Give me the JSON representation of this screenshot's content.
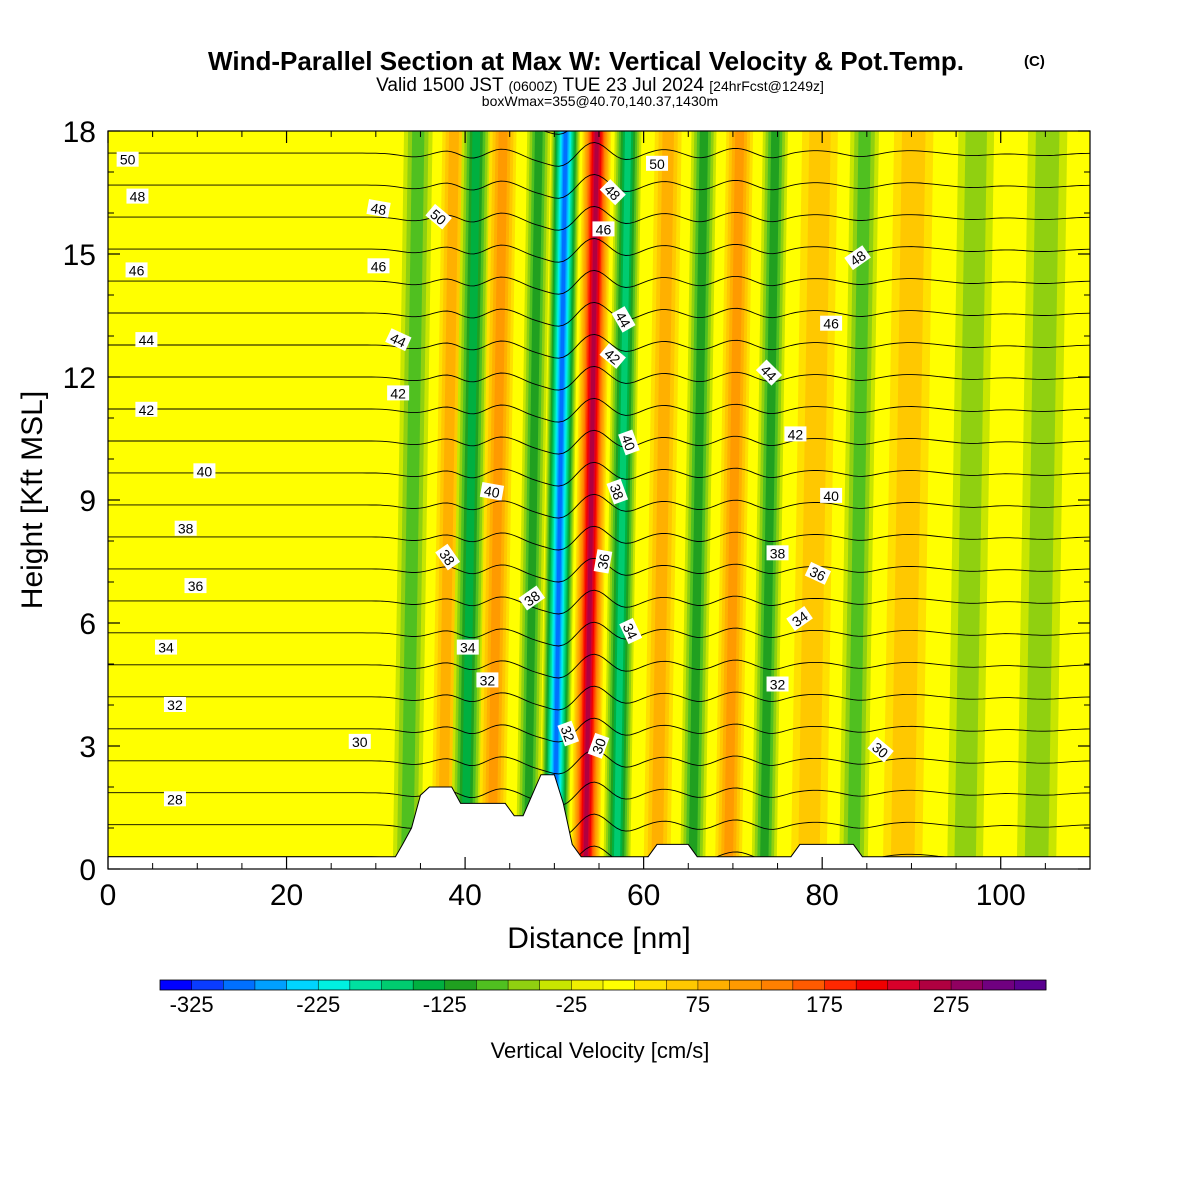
{
  "chart_data": {
    "type": "heatmap",
    "title": "Wind-Parallel Section at Max W: Vertical Velocity & Pot.Temp.",
    "title_mark": "(C)",
    "subtitle_parts": [
      "Valid 1500 JST ",
      "(0600Z)",
      " TUE 23 Jul 2024 ",
      "[24hrFcst@1249z]"
    ],
    "subtitle2": "boxWmax=355@40.70,140.37,1430m",
    "xlabel": "Distance [nm]",
    "ylabel": "Height [Kft MSL]",
    "xlim": [
      0,
      110
    ],
    "ylim": [
      0,
      18
    ],
    "xticks": [
      0,
      20,
      40,
      60,
      80,
      100
    ],
    "yticks": [
      0,
      3,
      6,
      9,
      12,
      15,
      18
    ],
    "colorbar": {
      "label": "Vertical Velocity [cm/s]",
      "min": -350,
      "max": 350,
      "step": 25,
      "tick_values": [
        -325,
        -225,
        -125,
        -25,
        75,
        175,
        275
      ],
      "colors": [
        "#0000ff",
        "#0a3cff",
        "#0070ff",
        "#00a0ff",
        "#00d4ff",
        "#00f0e0",
        "#00e0a0",
        "#00cc70",
        "#00b040",
        "#20a020",
        "#50c020",
        "#90d010",
        "#c8e600",
        "#f0f000",
        "#ffff00",
        "#ffe000",
        "#ffc800",
        "#ffb000",
        "#ff9a00",
        "#ff8000",
        "#ff5a00",
        "#ff2800",
        "#f00000",
        "#d8002a",
        "#b00040",
        "#900060",
        "#700080",
        "#5a0090"
      ]
    },
    "w_bands": [
      {
        "x": 33.5,
        "w": -75,
        "width": 1.6
      },
      {
        "x": 37.5,
        "w": 75,
        "width": 1.3
      },
      {
        "x": 40.0,
        "w": -125,
        "width": 1.6
      },
      {
        "x": 43.0,
        "w": 100,
        "width": 1.5
      },
      {
        "x": 47.0,
        "w": -100,
        "width": 1.3
      },
      {
        "x": 50.0,
        "w": -275,
        "width": 1.6
      },
      {
        "x": 53.5,
        "w": 250,
        "width": 1.6
      },
      {
        "x": 57.0,
        "w": -150,
        "width": 1.5
      },
      {
        "x": 61.5,
        "w": 75,
        "width": 1.5
      },
      {
        "x": 65.5,
        "w": -100,
        "width": 1.4
      },
      {
        "x": 69.5,
        "w": 100,
        "width": 1.5
      },
      {
        "x": 73.5,
        "w": -100,
        "width": 1.4
      },
      {
        "x": 78.5,
        "w": 50,
        "width": 2.0
      },
      {
        "x": 83.5,
        "w": -75,
        "width": 1.6
      },
      {
        "x": 89.0,
        "w": 50,
        "width": 2.2
      },
      {
        "x": 96.0,
        "w": -50,
        "width": 2.0
      },
      {
        "x": 104.0,
        "w": -50,
        "width": 2.2
      }
    ],
    "terrain": [
      [
        0,
        0.3
      ],
      [
        32.2,
        0.3
      ],
      [
        33,
        0.6
      ],
      [
        34,
        1.0
      ],
      [
        35,
        1.8
      ],
      [
        36,
        2.0
      ],
      [
        38.5,
        2.0
      ],
      [
        39.5,
        1.6
      ],
      [
        42,
        1.6
      ],
      [
        44.5,
        1.6
      ],
      [
        45.5,
        1.3
      ],
      [
        46.5,
        1.3
      ],
      [
        47.5,
        1.8
      ],
      [
        48.5,
        2.3
      ],
      [
        50,
        2.3
      ],
      [
        51,
        1.6
      ],
      [
        52,
        0.6
      ],
      [
        53,
        0.3
      ],
      [
        60.5,
        0.3
      ],
      [
        61.5,
        0.6
      ],
      [
        65,
        0.6
      ],
      [
        66,
        0.3
      ],
      [
        76.5,
        0.3
      ],
      [
        77.5,
        0.6
      ],
      [
        83.5,
        0.6
      ],
      [
        84.5,
        0.3
      ],
      [
        110,
        0.3
      ]
    ],
    "theta_levels": [
      28,
      29,
      30,
      31,
      32,
      33,
      34,
      35,
      36,
      37,
      38,
      39,
      40,
      41,
      42,
      43,
      44,
      45,
      46,
      47,
      48,
      49,
      50,
      51
    ],
    "theta_labels": [
      {
        "text": "50",
        "x": 2.2,
        "y": 17.3,
        "angle": 0
      },
      {
        "text": "48",
        "x": 3.3,
        "y": 16.4,
        "angle": 0
      },
      {
        "text": "46",
        "x": 3.2,
        "y": 14.6,
        "angle": 0
      },
      {
        "text": "44",
        "x": 4.3,
        "y": 12.9,
        "angle": 0
      },
      {
        "text": "42",
        "x": 4.3,
        "y": 11.2,
        "angle": 0
      },
      {
        "text": "40",
        "x": 10.8,
        "y": 9.7,
        "angle": 0
      },
      {
        "text": "38",
        "x": 8.7,
        "y": 8.3,
        "angle": 0
      },
      {
        "text": "36",
        "x": 9.8,
        "y": 6.9,
        "angle": 0
      },
      {
        "text": "34",
        "x": 6.5,
        "y": 5.4,
        "angle": 0
      },
      {
        "text": "32",
        "x": 7.5,
        "y": 4.0,
        "angle": 0
      },
      {
        "text": "30",
        "x": 28.2,
        "y": 3.1,
        "angle": 0
      },
      {
        "text": "28",
        "x": 7.5,
        "y": 1.7,
        "angle": 0
      },
      {
        "text": "48",
        "x": 30.3,
        "y": 16.1,
        "angle": 10
      },
      {
        "text": "50",
        "x": 37.0,
        "y": 15.9,
        "angle": 40
      },
      {
        "text": "46",
        "x": 30.3,
        "y": 14.7,
        "angle": 0
      },
      {
        "text": "44",
        "x": 32.5,
        "y": 12.9,
        "angle": 25
      },
      {
        "text": "42",
        "x": 32.5,
        "y": 11.6,
        "angle": 0
      },
      {
        "text": "40",
        "x": 43.0,
        "y": 9.2,
        "angle": 10
      },
      {
        "text": "38",
        "x": 38.0,
        "y": 7.6,
        "angle": 55
      },
      {
        "text": "34",
        "x": 40.3,
        "y": 5.4,
        "angle": 0
      },
      {
        "text": "32",
        "x": 42.5,
        "y": 4.6,
        "angle": 0
      },
      {
        "text": "38",
        "x": 47.5,
        "y": 6.6,
        "angle": -35
      },
      {
        "text": "32",
        "x": 51.5,
        "y": 3.3,
        "angle": 70
      },
      {
        "text": "30",
        "x": 55.0,
        "y": 3.0,
        "angle": -70
      },
      {
        "text": "36",
        "x": 55.5,
        "y": 7.5,
        "angle": -80
      },
      {
        "text": "38",
        "x": 57.0,
        "y": 9.2,
        "angle": 70
      },
      {
        "text": "40",
        "x": 58.3,
        "y": 10.4,
        "angle": 70
      },
      {
        "text": "42",
        "x": 56.5,
        "y": 12.5,
        "angle": 40
      },
      {
        "text": "44",
        "x": 57.7,
        "y": 13.4,
        "angle": 60
      },
      {
        "text": "46",
        "x": 55.5,
        "y": 15.6,
        "angle": 0
      },
      {
        "text": "48",
        "x": 56.5,
        "y": 16.5,
        "angle": 45
      },
      {
        "text": "50",
        "x": 61.5,
        "y": 17.2,
        "angle": 0
      },
      {
        "text": "34",
        "x": 58.5,
        "y": 5.8,
        "angle": 65
      },
      {
        "text": "44",
        "x": 74.0,
        "y": 12.1,
        "angle": 45
      },
      {
        "text": "42",
        "x": 77.0,
        "y": 10.6,
        "angle": 0
      },
      {
        "text": "40",
        "x": 81.0,
        "y": 9.1,
        "angle": 0
      },
      {
        "text": "38",
        "x": 75.0,
        "y": 7.7,
        "angle": 0
      },
      {
        "text": "36",
        "x": 79.5,
        "y": 7.2,
        "angle": 25
      },
      {
        "text": "34",
        "x": 77.5,
        "y": 6.1,
        "angle": -35
      },
      {
        "text": "32",
        "x": 75.0,
        "y": 4.5,
        "angle": 0
      },
      {
        "text": "30",
        "x": 86.5,
        "y": 2.9,
        "angle": 40
      },
      {
        "text": "46",
        "x": 81.0,
        "y": 13.3,
        "angle": 0
      },
      {
        "text": "48",
        "x": 84.0,
        "y": 14.9,
        "angle": -35
      }
    ]
  }
}
